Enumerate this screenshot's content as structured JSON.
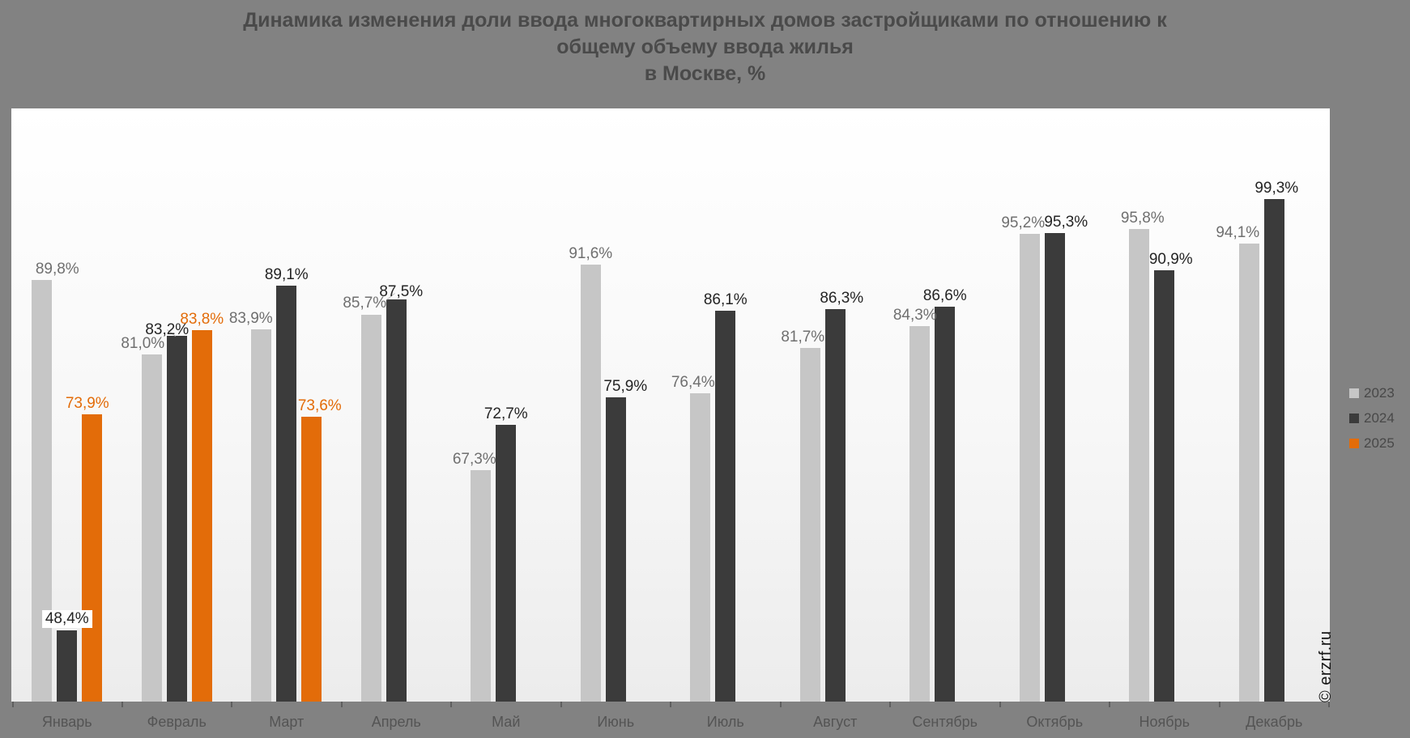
{
  "page": {
    "background_color": "#828282",
    "plot_background": "white gradient"
  },
  "title": {
    "lines": [
      "Динамика изменения доли ввода многоквартирных домов застройщиками по отношению к",
      "общему объему ввода жилья",
      "в Москве, %"
    ]
  },
  "watermark": "© erzrf.ru",
  "chart_data": {
    "type": "bar",
    "title": "Динамика изменения доли ввода многоквартирных домов застройщиками по отношению к общему объему ввода жилья в Москве, %",
    "unit": "%",
    "categories": [
      "Январь",
      "Февраль",
      "Март",
      "Апрель",
      "Май",
      "Июнь",
      "Июль",
      "Август",
      "Сентябрь",
      "Октябрь",
      "Ноябрь",
      "Декабрь"
    ],
    "series": [
      {
        "name": "2023",
        "color": "#C6C6C6",
        "label_color": "#6F6F6F",
        "values": [
          89.8,
          81.0,
          83.9,
          85.7,
          67.3,
          91.6,
          76.4,
          81.7,
          84.3,
          95.2,
          95.8,
          94.1
        ],
        "labels": [
          "89,8%",
          "81,0%",
          "83,9%",
          "85,7%",
          "67,3%",
          "91,6%",
          "76,4%",
          "81,7%",
          "84,3%",
          "95,2%",
          "95,8%",
          "94,1%"
        ]
      },
      {
        "name": "2024",
        "color": "#3B3B3B",
        "label_color": "#242424",
        "values": [
          48.4,
          83.2,
          89.1,
          87.5,
          72.7,
          75.9,
          86.1,
          86.3,
          86.6,
          95.3,
          90.9,
          99.3
        ],
        "labels": [
          "48,4%",
          "83,2%",
          "89,1%",
          "87,5%",
          "72,7%",
          "75,9%",
          "86,1%",
          "86,3%",
          "86,6%",
          "95,3%",
          "90,9%",
          "99,3%"
        ]
      },
      {
        "name": "2025",
        "color": "#E36C09",
        "label_color": "#E36C09",
        "values": [
          73.9,
          83.8,
          73.6,
          null,
          null,
          null,
          null,
          null,
          null,
          null,
          null,
          null
        ],
        "labels": [
          "73,9%",
          "83,8%",
          "73,6%",
          null,
          null,
          null,
          null,
          null,
          null,
          null,
          null,
          null
        ]
      }
    ],
    "ylim": [
      40,
      110
    ],
    "y_axis_visible": false,
    "gridlines": false,
    "data_labels": true,
    "legend_position": "right",
    "legend_labels": [
      "2023",
      "2024",
      "2025"
    ]
  }
}
